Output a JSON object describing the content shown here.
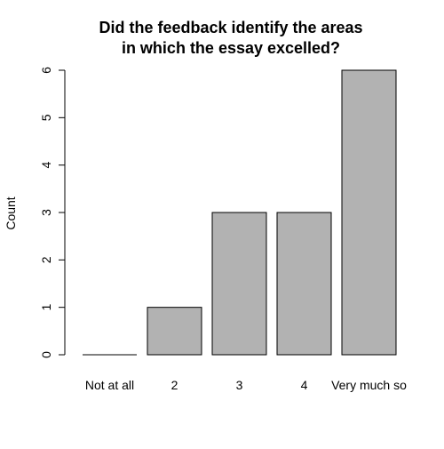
{
  "chart_data": {
    "type": "bar",
    "title_lines": [
      "Did the feedback identify the areas",
      "in which the essay excelled?"
    ],
    "xlabel": "",
    "ylabel": "Count",
    "categories": [
      "Not at all",
      "2",
      "3",
      "4",
      "Very much so"
    ],
    "values": [
      0,
      1,
      3,
      3,
      6
    ],
    "ylim": [
      0,
      6
    ],
    "yticks": [
      0,
      1,
      2,
      3,
      4,
      5,
      6
    ],
    "grid": false,
    "bar_color": "#b2b2b2",
    "bar_edge_color": "#000000"
  }
}
